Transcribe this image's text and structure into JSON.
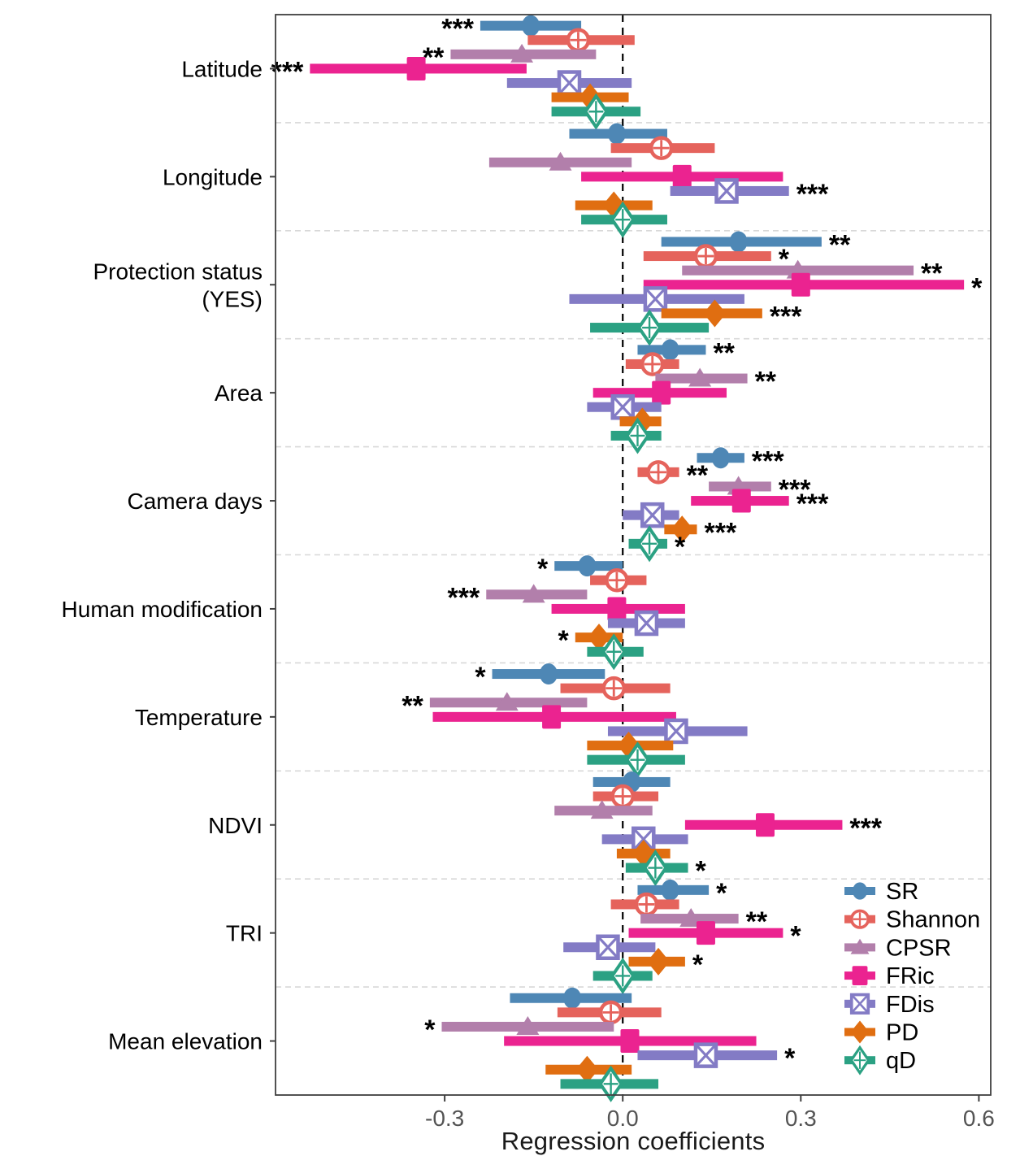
{
  "chart_data": {
    "type": "forest-dot-interval",
    "title": "",
    "xlabel": "Regression coefficients",
    "xlim": [
      -0.585,
      0.62
    ],
    "x_ticks": [
      -0.3,
      0.0,
      0.3,
      0.6
    ],
    "x_tick_labels": [
      "-0.3",
      "0.0",
      "0.3",
      "0.6"
    ],
    "zero_line": 0.0,
    "grid": "dashed horizontal separators between groups",
    "legend_position": "inside bottom-right",
    "series": [
      {
        "name": "SR",
        "color": "#4e87b5",
        "marker": "circle-filled"
      },
      {
        "name": "Shannon",
        "color": "#e5635c",
        "marker": "circle-open-cross"
      },
      {
        "name": "CPSR",
        "color": "#b27fab",
        "marker": "triangle-filled"
      },
      {
        "name": "FRic",
        "color": "#eb2390",
        "marker": "square-filled"
      },
      {
        "name": "FDis",
        "color": "#837bc5",
        "marker": "square-open-x"
      },
      {
        "name": "PD",
        "color": "#e06e11",
        "marker": "diamond-filled"
      },
      {
        "name": "qD",
        "color": "#2ba183",
        "marker": "diamond-open-cross"
      }
    ],
    "groups": [
      {
        "label": "Latitude",
        "lines": [
          "Latitude"
        ],
        "rows": [
          {
            "metric": "SR",
            "est": -0.155,
            "lo": -0.24,
            "hi": -0.07,
            "sig": "***"
          },
          {
            "metric": "Shannon",
            "est": -0.075,
            "lo": -0.16,
            "hi": 0.02,
            "sig": ""
          },
          {
            "metric": "CPSR",
            "est": -0.17,
            "lo": -0.29,
            "hi": -0.045,
            "sig": "**"
          },
          {
            "metric": "FRic",
            "est": -0.348,
            "lo": -0.527,
            "hi": -0.162,
            "sig": "***"
          },
          {
            "metric": "FDis",
            "est": -0.09,
            "lo": -0.195,
            "hi": 0.015,
            "sig": ""
          },
          {
            "metric": "PD",
            "est": -0.055,
            "lo": -0.12,
            "hi": 0.01,
            "sig": ""
          },
          {
            "metric": "qD",
            "est": -0.045,
            "lo": -0.12,
            "hi": 0.03,
            "sig": ""
          }
        ]
      },
      {
        "label": "Longitude",
        "lines": [
          "Longitude"
        ],
        "rows": [
          {
            "metric": "SR",
            "est": -0.01,
            "lo": -0.09,
            "hi": 0.075,
            "sig": ""
          },
          {
            "metric": "Shannon",
            "est": 0.065,
            "lo": -0.02,
            "hi": 0.155,
            "sig": ""
          },
          {
            "metric": "CPSR",
            "est": -0.105,
            "lo": -0.225,
            "hi": 0.015,
            "sig": ""
          },
          {
            "metric": "FRic",
            "est": 0.1,
            "lo": -0.07,
            "hi": 0.27,
            "sig": ""
          },
          {
            "metric": "FDis",
            "est": 0.175,
            "lo": 0.08,
            "hi": 0.28,
            "sig": "***"
          },
          {
            "metric": "PD",
            "est": -0.015,
            "lo": -0.08,
            "hi": 0.05,
            "sig": ""
          },
          {
            "metric": "qD",
            "est": 0.0,
            "lo": -0.07,
            "hi": 0.075,
            "sig": ""
          }
        ]
      },
      {
        "label": "Protection status (YES)",
        "lines": [
          "Protection status",
          "(YES)"
        ],
        "rows": [
          {
            "metric": "SR",
            "est": 0.195,
            "lo": 0.065,
            "hi": 0.335,
            "sig": "**"
          },
          {
            "metric": "Shannon",
            "est": 0.14,
            "lo": 0.035,
            "hi": 0.25,
            "sig": "*"
          },
          {
            "metric": "CPSR",
            "est": 0.295,
            "lo": 0.1,
            "hi": 0.49,
            "sig": "**"
          },
          {
            "metric": "FRic",
            "est": 0.3,
            "lo": 0.035,
            "hi": 0.575,
            "sig": "*"
          },
          {
            "metric": "FDis",
            "est": 0.055,
            "lo": -0.09,
            "hi": 0.205,
            "sig": ""
          },
          {
            "metric": "PD",
            "est": 0.155,
            "lo": 0.065,
            "hi": 0.235,
            "sig": "***"
          },
          {
            "metric": "qD",
            "est": 0.045,
            "lo": -0.055,
            "hi": 0.145,
            "sig": ""
          }
        ]
      },
      {
        "label": "Area",
        "lines": [
          "Area"
        ],
        "rows": [
          {
            "metric": "SR",
            "est": 0.08,
            "lo": 0.025,
            "hi": 0.14,
            "sig": "**"
          },
          {
            "metric": "Shannon",
            "est": 0.05,
            "lo": 0.005,
            "hi": 0.095,
            "sig": ""
          },
          {
            "metric": "CPSR",
            "est": 0.13,
            "lo": 0.055,
            "hi": 0.21,
            "sig": "**"
          },
          {
            "metric": "FRic",
            "est": 0.065,
            "lo": -0.05,
            "hi": 0.175,
            "sig": ""
          },
          {
            "metric": "FDis",
            "est": 0.0,
            "lo": -0.06,
            "hi": 0.065,
            "sig": ""
          },
          {
            "metric": "PD",
            "est": 0.033,
            "lo": -0.005,
            "hi": 0.065,
            "sig": ""
          },
          {
            "metric": "qD",
            "est": 0.025,
            "lo": -0.02,
            "hi": 0.065,
            "sig": ""
          }
        ]
      },
      {
        "label": "Camera days",
        "lines": [
          "Camera days"
        ],
        "rows": [
          {
            "metric": "SR",
            "est": 0.165,
            "lo": 0.125,
            "hi": 0.205,
            "sig": "***"
          },
          {
            "metric": "Shannon",
            "est": 0.06,
            "lo": 0.025,
            "hi": 0.095,
            "sig": "**"
          },
          {
            "metric": "CPSR",
            "est": 0.195,
            "lo": 0.145,
            "hi": 0.25,
            "sig": "***"
          },
          {
            "metric": "FRic",
            "est": 0.2,
            "lo": 0.115,
            "hi": 0.28,
            "sig": "***"
          },
          {
            "metric": "FDis",
            "est": 0.05,
            "lo": 0.0,
            "hi": 0.095,
            "sig": ""
          },
          {
            "metric": "PD",
            "est": 0.1,
            "lo": 0.07,
            "hi": 0.125,
            "sig": "***"
          },
          {
            "metric": "qD",
            "est": 0.045,
            "lo": 0.01,
            "hi": 0.075,
            "sig": "*"
          }
        ]
      },
      {
        "label": "Human modification",
        "lines": [
          "Human modification"
        ],
        "rows": [
          {
            "metric": "SR",
            "est": -0.06,
            "lo": -0.115,
            "hi": 0.0,
            "sig": "*"
          },
          {
            "metric": "Shannon",
            "est": -0.01,
            "lo": -0.055,
            "hi": 0.04,
            "sig": ""
          },
          {
            "metric": "CPSR",
            "est": -0.15,
            "lo": -0.23,
            "hi": -0.06,
            "sig": "***"
          },
          {
            "metric": "FRic",
            "est": -0.01,
            "lo": -0.12,
            "hi": 0.105,
            "sig": ""
          },
          {
            "metric": "FDis",
            "est": 0.04,
            "lo": -0.025,
            "hi": 0.105,
            "sig": ""
          },
          {
            "metric": "PD",
            "est": -0.04,
            "lo": -0.08,
            "hi": 0.0,
            "sig": "*"
          },
          {
            "metric": "qD",
            "est": -0.015,
            "lo": -0.06,
            "hi": 0.035,
            "sig": ""
          }
        ]
      },
      {
        "label": "Temperature",
        "lines": [
          "Temperature"
        ],
        "rows": [
          {
            "metric": "SR",
            "est": -0.125,
            "lo": -0.22,
            "hi": -0.03,
            "sig": "*"
          },
          {
            "metric": "Shannon",
            "est": -0.015,
            "lo": -0.105,
            "hi": 0.08,
            "sig": ""
          },
          {
            "metric": "CPSR",
            "est": -0.195,
            "lo": -0.325,
            "hi": -0.06,
            "sig": "**"
          },
          {
            "metric": "FRic",
            "est": -0.12,
            "lo": -0.32,
            "hi": 0.09,
            "sig": ""
          },
          {
            "metric": "FDis",
            "est": 0.09,
            "lo": -0.025,
            "hi": 0.21,
            "sig": ""
          },
          {
            "metric": "PD",
            "est": 0.01,
            "lo": -0.06,
            "hi": 0.085,
            "sig": ""
          },
          {
            "metric": "qD",
            "est": 0.025,
            "lo": -0.06,
            "hi": 0.105,
            "sig": ""
          }
        ]
      },
      {
        "label": "NDVI",
        "lines": [
          "NDVI"
        ],
        "rows": [
          {
            "metric": "SR",
            "est": 0.015,
            "lo": -0.05,
            "hi": 0.08,
            "sig": ""
          },
          {
            "metric": "Shannon",
            "est": 0.0,
            "lo": -0.05,
            "hi": 0.06,
            "sig": ""
          },
          {
            "metric": "CPSR",
            "est": -0.035,
            "lo": -0.115,
            "hi": 0.05,
            "sig": ""
          },
          {
            "metric": "FRic",
            "est": 0.24,
            "lo": 0.105,
            "hi": 0.37,
            "sig": "***"
          },
          {
            "metric": "FDis",
            "est": 0.035,
            "lo": -0.035,
            "hi": 0.11,
            "sig": ""
          },
          {
            "metric": "PD",
            "est": 0.035,
            "lo": -0.01,
            "hi": 0.08,
            "sig": ""
          },
          {
            "metric": "qD",
            "est": 0.055,
            "lo": 0.005,
            "hi": 0.11,
            "sig": "*"
          }
        ]
      },
      {
        "label": "TRI",
        "lines": [
          "TRI"
        ],
        "rows": [
          {
            "metric": "SR",
            "est": 0.08,
            "lo": 0.025,
            "hi": 0.145,
            "sig": "*"
          },
          {
            "metric": "Shannon",
            "est": 0.04,
            "lo": -0.02,
            "hi": 0.095,
            "sig": ""
          },
          {
            "metric": "CPSR",
            "est": 0.115,
            "lo": 0.03,
            "hi": 0.195,
            "sig": "**"
          },
          {
            "metric": "FRic",
            "est": 0.14,
            "lo": 0.01,
            "hi": 0.27,
            "sig": "*"
          },
          {
            "metric": "FDis",
            "est": -0.025,
            "lo": -0.1,
            "hi": 0.055,
            "sig": ""
          },
          {
            "metric": "PD",
            "est": 0.06,
            "lo": 0.01,
            "hi": 0.105,
            "sig": "*"
          },
          {
            "metric": "qD",
            "est": 0.0,
            "lo": -0.05,
            "hi": 0.05,
            "sig": ""
          }
        ]
      },
      {
        "label": "Mean elevation",
        "lines": [
          "Mean elevation"
        ],
        "rows": [
          {
            "metric": "SR",
            "est": -0.085,
            "lo": -0.19,
            "hi": 0.015,
            "sig": ""
          },
          {
            "metric": "Shannon",
            "est": -0.02,
            "lo": -0.11,
            "hi": 0.065,
            "sig": ""
          },
          {
            "metric": "CPSR",
            "est": -0.16,
            "lo": -0.305,
            "hi": -0.015,
            "sig": "*"
          },
          {
            "metric": "FRic",
            "est": 0.012,
            "lo": -0.2,
            "hi": 0.225,
            "sig": ""
          },
          {
            "metric": "FDis",
            "est": 0.14,
            "lo": 0.025,
            "hi": 0.26,
            "sig": "*"
          },
          {
            "metric": "PD",
            "est": -0.06,
            "lo": -0.13,
            "hi": 0.015,
            "sig": ""
          },
          {
            "metric": "qD",
            "est": -0.02,
            "lo": -0.105,
            "hi": 0.06,
            "sig": ""
          }
        ]
      }
    ],
    "style_colors": {
      "panel_border": "#3f3f3f",
      "separator": "#d8d8d8",
      "zero_line": "#000000",
      "tick_label": "#545454",
      "group_label": "#000000"
    }
  }
}
